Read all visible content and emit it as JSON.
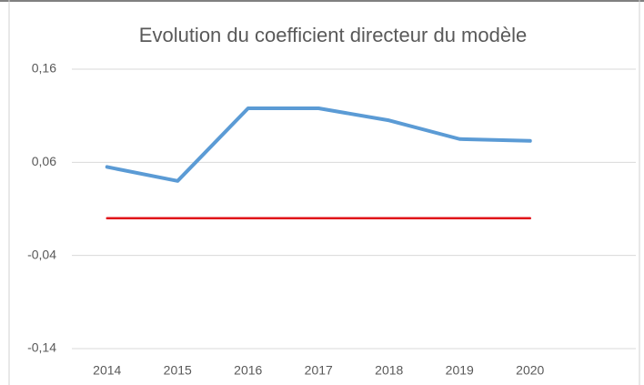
{
  "chart_data": {
    "type": "line",
    "title": "Evolution du coefficient directeur du modèle",
    "categories": [
      "2014",
      "2015",
      "2016",
      "2017",
      "2018",
      "2019",
      "2020"
    ],
    "series": [
      {
        "color": "#5b9bd5",
        "values": [
          0.055,
          0.04,
          0.118,
          0.118,
          0.105,
          0.085,
          0.083
        ]
      },
      {
        "color": "#e0101a",
        "values": [
          0,
          0,
          0,
          0,
          0,
          0,
          0
        ]
      }
    ],
    "ylim": [
      -0.14,
      0.16
    ],
    "yticks": [
      {
        "value": -0.14,
        "label": "-0,14"
      },
      {
        "value": -0.04,
        "label": "-0,04"
      },
      {
        "value": 0.06,
        "label": "0,06"
      },
      {
        "value": 0.16,
        "label": "0,16"
      }
    ],
    "grid": true
  }
}
